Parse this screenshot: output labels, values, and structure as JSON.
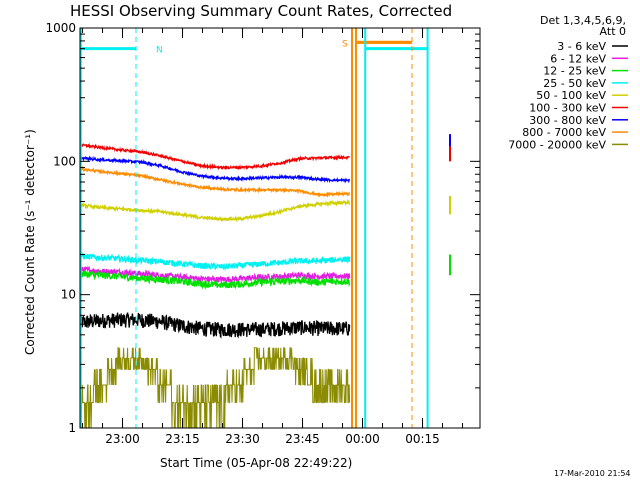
{
  "chart_data": {
    "type": "line",
    "title": "HESSI Observing Summary Count Rates, Corrected",
    "ylabel": "Corrected Count Rate (s⁻¹ detector⁻¹)",
    "xlabel": "Start Time (05-Apr-08 22:49:22)",
    "timestamp": "17-Mar-2010 21:54",
    "y_scale": "log",
    "ylim": [
      1,
      1000
    ],
    "y_ticks": [
      "1",
      "10",
      "100",
      "1000"
    ],
    "xlim_minutes_after_start": [
      0,
      100
    ],
    "x_ticks": [
      {
        "label": "23:00",
        "t": 10.63
      },
      {
        "label": "23:15",
        "t": 25.63
      },
      {
        "label": "23:30",
        "t": 40.63
      },
      {
        "label": "23:45",
        "t": 55.63
      },
      {
        "label": "00:00",
        "t": 70.63
      },
      {
        "label": "00:15",
        "t": 85.63
      }
    ],
    "legend_header": [
      "Det 1,3,4,5,6,9,",
      "Att 0"
    ],
    "series": [
      {
        "name": "3 - 6 keV",
        "color": "#000000",
        "values": [
          6.2,
          6.4,
          6.5,
          6.5,
          6.3,
          5.9,
          5.6,
          5.5,
          5.5,
          5.5,
          5.6,
          5.7,
          5.6,
          5.6
        ]
      },
      {
        "name": "6 - 12 keV",
        "color": "#e21ee2",
        "values": [
          15.5,
          15.0,
          14.8,
          14.4,
          14.0,
          13.6,
          13.2,
          13.0,
          13.2,
          13.5,
          13.7,
          14.0,
          13.7,
          13.8
        ]
      },
      {
        "name": "12 - 25 keV",
        "color": "#00e000",
        "values": [
          14.4,
          14.0,
          13.7,
          13.3,
          13.0,
          12.6,
          12.1,
          11.8,
          12.0,
          12.4,
          12.6,
          12.8,
          12.4,
          12.6
        ]
      },
      {
        "name": "25 - 50 keV",
        "color": "#00f0f0",
        "values": [
          19.5,
          19.0,
          18.6,
          18.1,
          17.7,
          17.1,
          16.5,
          16.2,
          16.5,
          17.0,
          17.4,
          17.9,
          17.9,
          18.4
        ]
      },
      {
        "name": "50 - 100 keV",
        "color": "#d0d000",
        "values": [
          47,
          45,
          44,
          43,
          42,
          40,
          38,
          37,
          37,
          39,
          42,
          46,
          48,
          49
        ]
      },
      {
        "name": "100 - 300 keV",
        "color": "#f00000",
        "values": [
          133,
          127,
          122,
          118,
          110,
          101,
          93,
          90,
          90,
          92,
          97,
          105,
          106,
          107
        ]
      },
      {
        "name": "300 - 800 keV",
        "color": "#0000ff",
        "values": [
          106,
          103,
          101,
          99,
          93,
          84,
          78,
          75,
          74,
          75,
          76,
          76,
          73,
          72
        ]
      },
      {
        "name": "800 - 7000 keV",
        "color": "#ff8c00",
        "values": [
          88,
          84,
          81,
          78,
          73,
          68,
          64,
          62,
          61,
          61,
          61,
          60,
          56,
          57
        ]
      },
      {
        "name": "7000 - 20000 keV",
        "color": "#8b8b00",
        "values": [
          1.6,
          2.4,
          3.6,
          3.9,
          2.6,
          1.8,
          1.6,
          1.9,
          2.6,
          3.7,
          3.9,
          3.2,
          2.5,
          2.4
        ]
      }
    ],
    "series_t": [
      0,
      5,
      10,
      15,
      20,
      25,
      30,
      35,
      40,
      45,
      50,
      55,
      60,
      65
    ],
    "annotations": [
      {
        "label": "N",
        "color": "#00f0f0",
        "level": 700,
        "t_from": 0,
        "t_to": 14.0,
        "dashed_t": 14.0
      },
      {
        "label": "S",
        "color": "#ff8c00",
        "level": 780,
        "t_from": 69.0,
        "t_to": 83.0,
        "dashed_t": 83.0
      }
    ],
    "solid_markers": [
      {
        "color": "#ff8c00",
        "t": 68.0
      },
      {
        "color": "#ff8c00",
        "t": 69.0
      },
      {
        "color": "#00f0f0",
        "t": 71.3
      },
      {
        "color": "#00f0f0",
        "t": 86.9
      }
    ],
    "dashed_markers": [
      {
        "color": "#00f0f0",
        "t": 14.0
      },
      {
        "color": "#ff8c00",
        "t": 83.0
      },
      {
        "color": "#00f0f0",
        "t": 87.0
      }
    ],
    "grid": false,
    "legend_position": "right"
  }
}
